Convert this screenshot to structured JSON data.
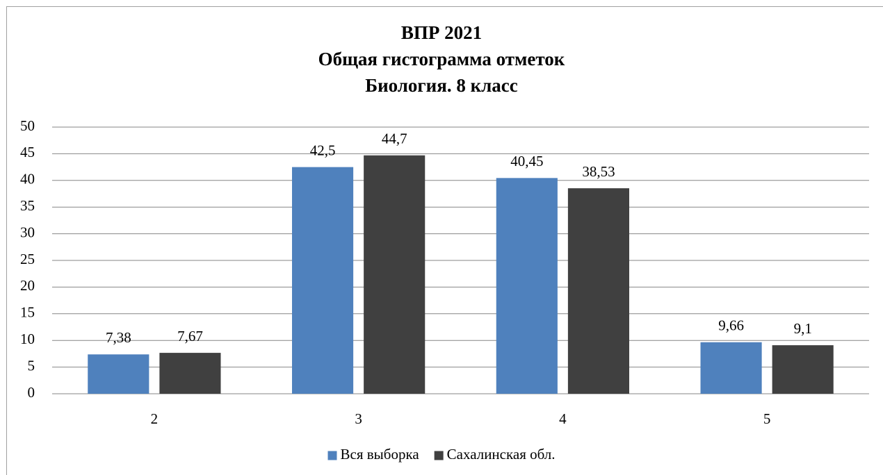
{
  "chart_data": {
    "type": "bar",
    "title": [
      "ВПР 2021",
      "Общая гистограмма отметок",
      "Биология. 8 класс"
    ],
    "categories": [
      "2",
      "3",
      "4",
      "5"
    ],
    "series": [
      {
        "name": "Вся выборка",
        "color": "#4f81bd",
        "values": [
          7.38,
          42.5,
          40.45,
          9.66
        ],
        "value_labels": [
          "7,38",
          "42,5",
          "40,45",
          "9,66"
        ]
      },
      {
        "name": "Сахалинская обл.",
        "color": "#404040",
        "values": [
          7.67,
          44.7,
          38.53,
          9.1
        ],
        "value_labels": [
          "7,67",
          "44,7",
          "38,53",
          "9,1"
        ]
      }
    ],
    "ylim": [
      0,
      50
    ],
    "yticks": [
      0,
      5,
      10,
      15,
      20,
      25,
      30,
      35,
      40,
      45,
      50
    ],
    "grid": true,
    "legend": "bottom"
  }
}
